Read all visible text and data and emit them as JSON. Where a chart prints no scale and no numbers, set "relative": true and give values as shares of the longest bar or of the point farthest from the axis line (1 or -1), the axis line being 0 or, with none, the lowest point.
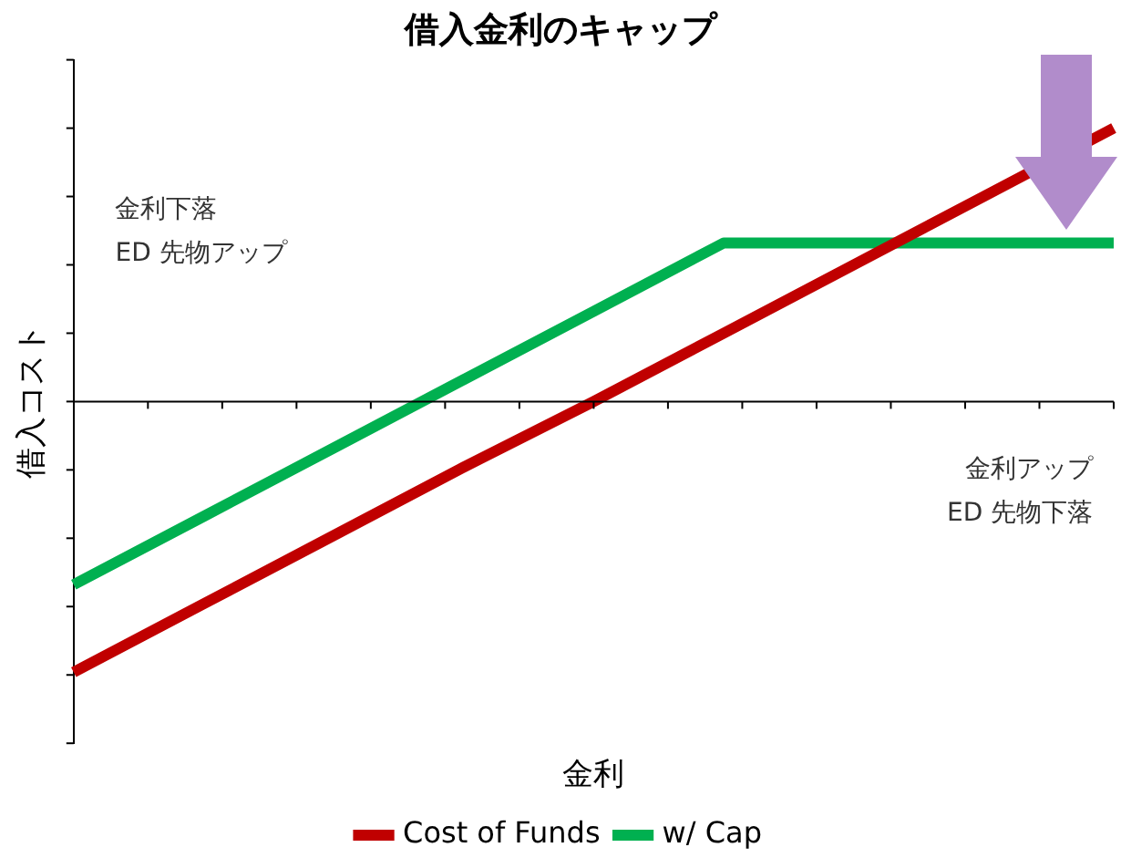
{
  "chart_data": {
    "type": "line",
    "title": "借入金利のキャップ",
    "xlabel": "金利",
    "ylabel": "借入コスト",
    "relative": true,
    "categories": [
      null,
      null,
      null,
      null,
      null,
      null,
      null,
      null,
      null
    ],
    "series": [
      {
        "name": "Cost of Funds",
        "color": "#c00000",
        "values": [
          -0.99,
          -0.74,
          -0.49,
          -0.24,
          0.0,
          0.25,
          0.5,
          0.75,
          1.0
        ]
      },
      {
        "name": "w/ Cap",
        "color": "#00b050",
        "values": [
          -0.67,
          -0.42,
          -0.17,
          0.08,
          0.33,
          0.58,
          0.58,
          0.58,
          0.58
        ]
      }
    ],
    "annotations": [
      "金利下落\nED 先物アップ",
      "金利アップ\nED 先物下落"
    ],
    "legend": "bottom",
    "marker": "none",
    "line_style": "solid",
    "grid": false
  }
}
